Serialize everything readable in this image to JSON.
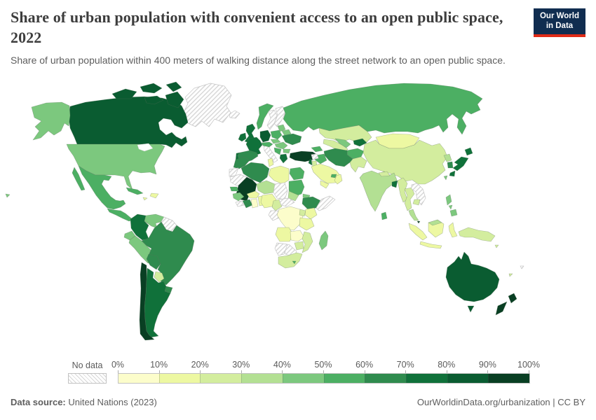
{
  "header": {
    "title": "Share of urban population with convenient access to an open public space, 2022",
    "subtitle": "Share of urban population within 400 meters of walking distance along the street network to an open public space.",
    "logo": {
      "line1": "Our World",
      "line2": "in Data",
      "bg": "#102d50",
      "accent": "#e02b17"
    }
  },
  "legend": {
    "no_data_label": "No data",
    "tick_labels": [
      "0%",
      "10%",
      "20%",
      "30%",
      "40%",
      "50%",
      "60%",
      "70%",
      "80%",
      "90%",
      "100%"
    ],
    "colors": [
      "#fcfdcb",
      "#edf8a2",
      "#d3ed9e",
      "#b3e093",
      "#7cc87e",
      "#4caf63",
      "#2f8b4e",
      "#10713a",
      "#0a5c31",
      "#093f23"
    ]
  },
  "footer": {
    "source_label": "Data source:",
    "source_value": " United Nations (2023)",
    "right_text": "OurWorldinData.org/urbanization | CC BY"
  },
  "chart_data": {
    "type": "choropleth",
    "title": "Share of urban population with convenient access to an open public space, 2022",
    "unit": "% of urban population",
    "bins": [
      "0-10%",
      "10-20%",
      "20-30%",
      "30-40%",
      "40-50%",
      "50-60%",
      "60-70%",
      "70-80%",
      "80-90%",
      "90-100%"
    ],
    "no_data_key": "no-data",
    "values": {
      "canada": "80-90%",
      "united_states": "40-50%",
      "greenland": "no-data",
      "mexico": "50-60%",
      "central_america": "50-60%",
      "cuba": "50-60%",
      "hispaniola": "10-20%",
      "jamaica": "10-20%",
      "colombia": "70-80%",
      "venezuela": "40-50%",
      "guyanas": "no-data",
      "ecuador": "40-50%",
      "peru": "40-50%",
      "brazil": "60-70%",
      "bolivia": "60-70%",
      "paraguay": "20-30%",
      "uruguay": "60-70%",
      "argentina": "70-80%",
      "chile": "90-100%",
      "iceland": "no-data",
      "norway": "50-60%",
      "sweden": "no-data",
      "finland": "no-data",
      "denmark": "70-80%",
      "united_kingdom": "70-80%",
      "ireland": "70-80%",
      "germany": "80-90%",
      "france": "70-80%",
      "spain": "60-70%",
      "portugal": "70-80%",
      "italy": "no-data",
      "austria": "50-60%",
      "poland": "50-60%",
      "czechia_slovakia": "40-50%",
      "hungary_romania": "40-50%",
      "balkans": "50-60%",
      "bulgaria": "40-50%",
      "greece": "70-80%",
      "baltics": "40-50%",
      "belarus": "40-50%",
      "ukraine": "60-70%",
      "turkey": "90-100%",
      "caucasus": "50-60%",
      "russia": "50-60%",
      "kazakhstan": "20-30%",
      "turkmenistan": "20-30%",
      "uzbekistan": "40-50%",
      "kyrgyzstan_tajikistan": "70-80%",
      "afghanistan": "50-60%",
      "pakistan": "20-30%",
      "iran": "60-70%",
      "iraq": "50-60%",
      "syria": "no-data",
      "israel_lebanon": "70-80%",
      "jordan": "20-30%",
      "saudi_arabia": "10-20%",
      "yemen": "10-20%",
      "oman": "10-20%",
      "uae_qatar": "50-60%",
      "morocco": "60-70%",
      "western_sahara": "no-data",
      "mauritania": "no-data",
      "algeria": "60-70%",
      "tunisia": "10-20%",
      "libya": "10-20%",
      "egypt": "50-60%",
      "mali": "90-100%",
      "niger": "30-40%",
      "chad": "no-data",
      "sudan": "50-60%",
      "south_sudan": "30-40%",
      "eritrea": "40-50%",
      "ethiopia": "60-70%",
      "somalia": "no-data",
      "senegal": "50-60%",
      "guinea": "40-50%",
      "sierra_leone_liberia": "no-data",
      "cote_divoire": "60-70%",
      "ghana": "0-10%",
      "togo_benin": "10-20%",
      "burkina_faso": "10-20%",
      "nigeria": "10-20%",
      "cameroon": "20-30%",
      "central_african_republic": "no-data",
      "gabon_congo": "no-data",
      "dr_congo": "0-10%",
      "uganda": "20-30%",
      "kenya": "10-20%",
      "tanzania": "10-20%",
      "angola": "10-20%",
      "zambia": "0-10%",
      "mozambique": "20-30%",
      "zimbabwe": "20-30%",
      "botswana": "no-data",
      "namibia": "no-data",
      "south_africa": "20-30%",
      "lesotho": "50-60%",
      "madagascar": "40-50%",
      "mongolia": "10-20%",
      "china": "20-30%",
      "taiwan": "40-50%",
      "india": "30-40%",
      "nepal": "20-30%",
      "bangladesh": "70-80%",
      "sri_lanka": "50-60%",
      "myanmar": "20-30%",
      "thailand": "20-30%",
      "laos_vietnam": "no-data",
      "cambodia": "20-30%",
      "malaysia": "30-40%",
      "singapore": "90-100%",
      "indonesia": "10-20%",
      "philippines": "40-50%",
      "papua_new_guinea": "20-30%",
      "japan": "70-80%",
      "north_korea": "30-40%",
      "south_korea": "60-70%",
      "solomon_islands": "20-30%",
      "fiji": "no-data",
      "new_caledonia": "20-30%",
      "australia": "80-90%",
      "new_zealand": "90-100%"
    }
  }
}
